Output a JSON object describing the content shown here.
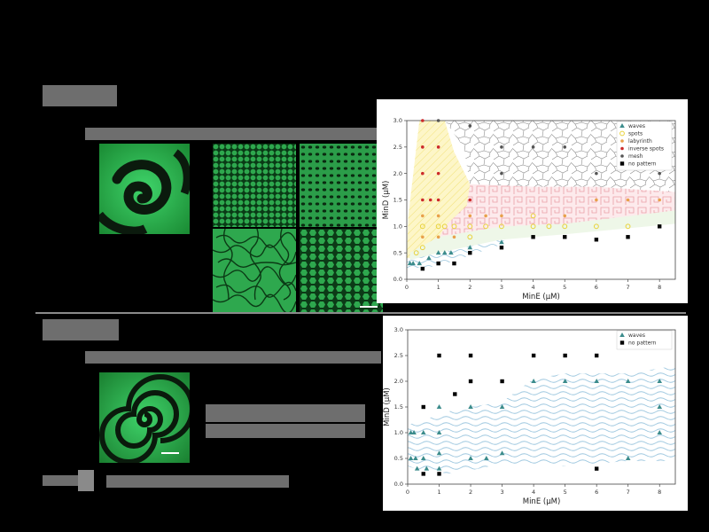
{
  "colors": {
    "waves": "#3c8c8c",
    "spots": "#e8d23a",
    "labyrinth": "#e8a04a",
    "inverse_spots": "#cc2a2a",
    "mesh": "#555555",
    "no_pattern": "#000000",
    "microscope_green": "#1f9e3a"
  },
  "chart_data": [
    {
      "type": "scatter",
      "title": "",
      "xlabel": "MinE (μM)",
      "ylabel": "MinD (μM)",
      "xlim": [
        0,
        8.5
      ],
      "ylim": [
        0,
        3.0
      ],
      "xticks": [
        "0",
        "1",
        "2",
        "3",
        "4",
        "5",
        "6",
        "7",
        "8"
      ],
      "yticks": [
        "0.0",
        "0.5",
        "1.0",
        "1.5",
        "2.0",
        "2.5",
        "3.0"
      ],
      "grid": false,
      "legend_position": "top-right",
      "series": [
        {
          "name": "waves",
          "marker": "triangle",
          "points": [
            [
              0.1,
              0.3
            ],
            [
              0.2,
              0.3
            ],
            [
              0.4,
              0.3
            ],
            [
              0.7,
              0.4
            ],
            [
              1.0,
              0.5
            ],
            [
              1.2,
              0.5
            ],
            [
              1.4,
              0.5
            ],
            [
              2.0,
              0.6
            ],
            [
              3.0,
              0.7
            ]
          ]
        },
        {
          "name": "spots",
          "marker": "circle-open",
          "points": [
            [
              0.3,
              0.5
            ],
            [
              0.5,
              0.6
            ],
            [
              0.5,
              1.0
            ],
            [
              1.0,
              1.0
            ],
            [
              1.2,
              1.0
            ],
            [
              1.5,
              1.0
            ],
            [
              2.0,
              1.0
            ],
            [
              2.5,
              1.0
            ],
            [
              3.0,
              1.0
            ],
            [
              4.0,
              1.0
            ],
            [
              4.5,
              1.0
            ],
            [
              5.0,
              1.0
            ],
            [
              6.0,
              1.0
            ],
            [
              7.0,
              1.0
            ],
            [
              2.0,
              0.8
            ],
            [
              4.0,
              1.2
            ]
          ]
        },
        {
          "name": "labyrinth",
          "marker": "dot",
          "points": [
            [
              0.5,
              0.8
            ],
            [
              1.0,
              0.8
            ],
            [
              1.5,
              0.8
            ],
            [
              1.0,
              1.2
            ],
            [
              0.5,
              1.2
            ],
            [
              2.0,
              1.2
            ],
            [
              2.5,
              1.2
            ],
            [
              3.0,
              1.2
            ],
            [
              5.0,
              1.2
            ],
            [
              6.0,
              1.5
            ],
            [
              7.0,
              1.5
            ],
            [
              8.0,
              1.5
            ]
          ]
        },
        {
          "name": "inverse spots",
          "marker": "dot",
          "points": [
            [
              0.5,
              3.0
            ],
            [
              0.5,
              2.5
            ],
            [
              1.0,
              2.5
            ],
            [
              0.5,
              2.0
            ],
            [
              1.0,
              2.0
            ],
            [
              0.5,
              1.5
            ],
            [
              0.75,
              1.5
            ],
            [
              1.0,
              1.5
            ],
            [
              2.0,
              1.5
            ]
          ]
        },
        {
          "name": "mesh",
          "marker": "dot",
          "points": [
            [
              1.0,
              3.0
            ],
            [
              2.0,
              2.9
            ],
            [
              3.0,
              2.5
            ],
            [
              3.0,
              2.0
            ],
            [
              4.0,
              2.5
            ],
            [
              5.0,
              2.5
            ],
            [
              6.0,
              2.0
            ],
            [
              7.0,
              2.5
            ],
            [
              8.0,
              2.0
            ]
          ]
        },
        {
          "name": "no pattern",
          "marker": "square",
          "points": [
            [
              0.5,
              0.2
            ],
            [
              1.0,
              0.3
            ],
            [
              1.5,
              0.3
            ],
            [
              2.0,
              0.5
            ],
            [
              3.0,
              0.6
            ],
            [
              4.0,
              0.8
            ],
            [
              5.0,
              0.8
            ],
            [
              6.0,
              0.75
            ],
            [
              7.0,
              0.8
            ],
            [
              8.0,
              1.0
            ]
          ]
        }
      ]
    },
    {
      "type": "scatter",
      "title": "",
      "xlabel": "MinE (μM)",
      "ylabel": "MinD (μM)",
      "xlim": [
        0,
        8.5
      ],
      "ylim": [
        0,
        3.0
      ],
      "xticks": [
        "0",
        "1",
        "2",
        "3",
        "4",
        "5",
        "6",
        "7",
        "8"
      ],
      "yticks": [
        "0.0",
        "0.5",
        "1.0",
        "1.5",
        "2.0",
        "2.5",
        "3.0"
      ],
      "grid": false,
      "legend_position": "top-right",
      "series": [
        {
          "name": "waves",
          "marker": "triangle",
          "points": [
            [
              0.1,
              1.0
            ],
            [
              0.2,
              1.0
            ],
            [
              0.5,
              1.0
            ],
            [
              1.0,
              1.0
            ],
            [
              0.1,
              0.5
            ],
            [
              0.25,
              0.5
            ],
            [
              0.5,
              0.5
            ],
            [
              1.0,
              0.6
            ],
            [
              2.0,
              0.5
            ],
            [
              2.5,
              0.5
            ],
            [
              3.0,
              0.6
            ],
            [
              1.0,
              1.5
            ],
            [
              2.0,
              1.5
            ],
            [
              3.0,
              1.5
            ],
            [
              4.0,
              2.0
            ],
            [
              5.0,
              2.0
            ],
            [
              6.0,
              2.0
            ],
            [
              7.0,
              2.0
            ],
            [
              8.0,
              2.0
            ],
            [
              8.0,
              1.5
            ],
            [
              8.0,
              1.0
            ],
            [
              7.0,
              0.5
            ],
            [
              0.3,
              0.3
            ],
            [
              0.6,
              0.3
            ],
            [
              1.0,
              0.3
            ]
          ]
        },
        {
          "name": "no pattern",
          "marker": "square",
          "points": [
            [
              1.0,
              2.5
            ],
            [
              2.0,
              2.5
            ],
            [
              4.0,
              2.5
            ],
            [
              5.0,
              2.5
            ],
            [
              6.0,
              2.5
            ],
            [
              2.0,
              2.0
            ],
            [
              3.0,
              2.0
            ],
            [
              0.5,
              1.5
            ],
            [
              1.5,
              1.75
            ],
            [
              0.5,
              0.2
            ],
            [
              1.0,
              0.2
            ],
            [
              6.0,
              0.3
            ]
          ]
        }
      ]
    }
  ]
}
